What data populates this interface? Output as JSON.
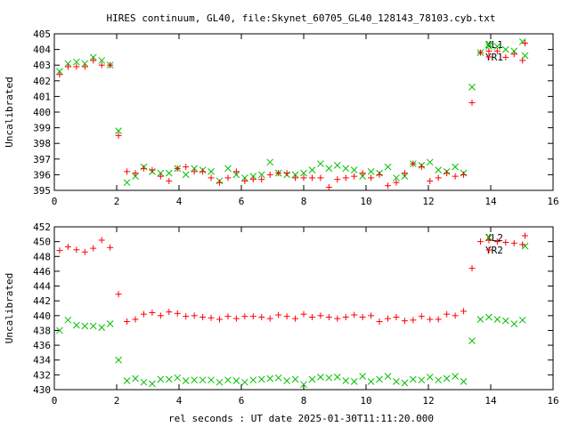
{
  "title": "HIRES continuum, GL40, file:Skynet_60705_GL40_128143_78103.cyb.txt",
  "xlabel": "rel seconds : UT date 2025-01-30T11:11:20.000",
  "colors": {
    "red": "#ff0000",
    "green": "#00c000",
    "frame": "#000000"
  },
  "chart_data": [
    {
      "type": "scatter",
      "ylabel": "Uncalibrated",
      "xlim": [
        0,
        16
      ],
      "ylim": [
        395,
        405
      ],
      "xticks": [
        0,
        2,
        4,
        6,
        8,
        10,
        12,
        14,
        16
      ],
      "yticks": [
        395,
        396,
        397,
        398,
        399,
        400,
        401,
        402,
        403,
        404,
        405
      ],
      "legend_position": "top-right",
      "series": [
        {
          "name": "XL1",
          "marker": "x",
          "color": "#00c000",
          "x": [
            0.17,
            0.44,
            0.71,
            0.98,
            1.25,
            1.52,
            1.79,
            2.06,
            2.33,
            2.6,
            2.87,
            3.14,
            3.41,
            3.68,
            3.95,
            4.22,
            4.49,
            4.76,
            5.03,
            5.3,
            5.57,
            5.84,
            6.11,
            6.38,
            6.65,
            6.92,
            7.19,
            7.46,
            7.73,
            8.0,
            8.27,
            8.54,
            8.81,
            9.08,
            9.35,
            9.62,
            9.89,
            10.16,
            10.43,
            10.7,
            10.97,
            11.24,
            11.51,
            11.78,
            12.05,
            12.32,
            12.59,
            12.86,
            13.13,
            13.4,
            13.67,
            13.94,
            14.21,
            14.48,
            14.75,
            15.02,
            15.1
          ],
          "y": [
            402.6,
            403.1,
            403.2,
            403.1,
            403.5,
            403.3,
            403.0,
            398.8,
            395.5,
            395.9,
            396.5,
            396.2,
            396.1,
            396.1,
            396.4,
            396.0,
            396.4,
            396.3,
            396.2,
            395.6,
            396.4,
            396.0,
            395.8,
            395.9,
            396.0,
            396.8,
            396.1,
            396.0,
            396.0,
            396.1,
            396.3,
            396.7,
            396.4,
            396.6,
            396.4,
            396.3,
            395.9,
            396.2,
            396.1,
            396.5,
            395.8,
            395.9,
            396.7,
            396.6,
            396.8,
            396.3,
            396.2,
            396.5,
            396.1,
            401.6,
            403.8,
            404.2,
            404.2,
            404.0,
            403.9,
            404.5,
            403.6
          ]
        },
        {
          "name": "YR1",
          "marker": "+",
          "color": "#ff0000",
          "x": [
            0.17,
            0.44,
            0.71,
            0.98,
            1.25,
            1.52,
            1.79,
            2.06,
            2.33,
            2.6,
            2.87,
            3.14,
            3.41,
            3.68,
            3.95,
            4.22,
            4.49,
            4.76,
            5.03,
            5.3,
            5.57,
            5.84,
            6.11,
            6.38,
            6.65,
            6.92,
            7.19,
            7.46,
            7.73,
            8.0,
            8.27,
            8.54,
            8.81,
            9.08,
            9.35,
            9.62,
            9.89,
            10.16,
            10.43,
            10.7,
            10.97,
            11.24,
            11.51,
            11.78,
            12.05,
            12.32,
            12.59,
            12.86,
            13.13,
            13.4,
            13.67,
            13.94,
            14.21,
            14.48,
            14.75,
            15.02,
            15.1
          ],
          "y": [
            402.4,
            402.9,
            402.9,
            402.9,
            403.3,
            403.0,
            403.0,
            398.5,
            396.2,
            396.1,
            396.4,
            396.3,
            395.9,
            395.6,
            396.4,
            396.5,
            396.2,
            396.2,
            395.8,
            395.5,
            395.8,
            396.2,
            395.6,
            395.7,
            395.7,
            396.0,
            396.1,
            396.1,
            395.8,
            395.8,
            395.8,
            395.8,
            395.2,
            395.7,
            395.8,
            395.9,
            396.1,
            395.8,
            396.0,
            395.3,
            395.5,
            396.1,
            396.7,
            396.5,
            395.6,
            395.8,
            396.1,
            395.9,
            396.0,
            400.6,
            403.8,
            403.9,
            403.9,
            403.5,
            403.7,
            403.3,
            404.4
          ]
        }
      ]
    },
    {
      "type": "scatter",
      "ylabel": "Uncalibrated",
      "xlim": [
        0,
        16
      ],
      "ylim": [
        430,
        452
      ],
      "xticks": [
        0,
        2,
        4,
        6,
        8,
        10,
        12,
        14,
        16
      ],
      "yticks": [
        430,
        432,
        434,
        436,
        438,
        440,
        442,
        444,
        446,
        448,
        450,
        452
      ],
      "legend_position": "top-right",
      "series": [
        {
          "name": "XL2",
          "marker": "x",
          "color": "#00c000",
          "x": [
            0.17,
            0.44,
            0.71,
            0.98,
            1.25,
            1.52,
            1.79,
            2.06,
            2.33,
            2.6,
            2.87,
            3.14,
            3.41,
            3.68,
            3.95,
            4.22,
            4.49,
            4.76,
            5.03,
            5.3,
            5.57,
            5.84,
            6.11,
            6.38,
            6.65,
            6.92,
            7.19,
            7.46,
            7.73,
            8.0,
            8.27,
            8.54,
            8.81,
            9.08,
            9.35,
            9.62,
            9.89,
            10.16,
            10.43,
            10.7,
            10.97,
            11.24,
            11.51,
            11.78,
            12.05,
            12.32,
            12.59,
            12.86,
            13.13,
            13.4,
            13.67,
            13.94,
            14.21,
            14.48,
            14.75,
            15.02,
            15.1
          ],
          "y": [
            438.0,
            439.4,
            438.7,
            438.6,
            438.6,
            438.4,
            438.9,
            434.0,
            431.2,
            431.5,
            431.0,
            430.8,
            431.4,
            431.4,
            431.6,
            431.2,
            431.3,
            431.3,
            431.3,
            431.0,
            431.3,
            431.2,
            431.0,
            431.3,
            431.4,
            431.5,
            431.6,
            431.2,
            431.4,
            430.7,
            431.4,
            431.7,
            431.6,
            431.7,
            431.2,
            431.1,
            431.8,
            431.1,
            431.4,
            431.8,
            431.1,
            430.9,
            431.4,
            431.3,
            431.7,
            431.3,
            431.5,
            431.8,
            431.1,
            436.6,
            439.5,
            439.8,
            439.5,
            439.3,
            438.9,
            439.4,
            449.4
          ]
        },
        {
          "name": "YR2",
          "marker": "+",
          "color": "#ff0000",
          "x": [
            0.17,
            0.44,
            0.71,
            0.98,
            1.25,
            1.52,
            1.79,
            2.06,
            2.33,
            2.6,
            2.87,
            3.14,
            3.41,
            3.68,
            3.95,
            4.22,
            4.49,
            4.76,
            5.03,
            5.3,
            5.57,
            5.84,
            6.11,
            6.38,
            6.65,
            6.92,
            7.19,
            7.46,
            7.73,
            8.0,
            8.27,
            8.54,
            8.81,
            9.08,
            9.35,
            9.62,
            9.89,
            10.16,
            10.43,
            10.7,
            10.97,
            11.24,
            11.51,
            11.78,
            12.05,
            12.32,
            12.59,
            12.86,
            13.13,
            13.4,
            13.67,
            13.94,
            14.21,
            14.48,
            14.75,
            15.02,
            15.1
          ],
          "y": [
            448.8,
            449.3,
            448.9,
            448.6,
            449.1,
            450.2,
            449.2,
            442.9,
            439.2,
            439.5,
            440.2,
            440.4,
            440.0,
            440.5,
            440.3,
            439.9,
            440.0,
            439.8,
            439.7,
            439.5,
            439.9,
            439.6,
            439.9,
            439.9,
            439.8,
            439.6,
            440.1,
            439.9,
            439.6,
            440.2,
            439.8,
            440.0,
            439.8,
            439.6,
            439.8,
            440.1,
            439.8,
            440.0,
            439.2,
            439.6,
            439.8,
            439.3,
            439.4,
            439.9,
            439.5,
            439.5,
            440.2,
            440.0,
            440.6,
            446.4,
            450.0,
            450.2,
            450.0,
            449.9,
            449.8,
            449.6,
            450.8
          ]
        }
      ]
    }
  ]
}
